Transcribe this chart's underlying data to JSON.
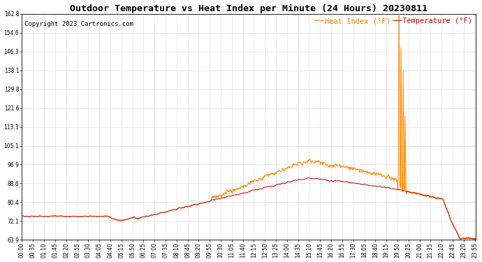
{
  "title": "Outdoor Temperature vs Heat Index per Minute (24 Hours) 20230811",
  "copyright": "Copyright 2023 Cartronics.com",
  "legend_heat": "Heat Index (°F)",
  "legend_temp": "Temperature (°F)",
  "temp_color": "#cc0000",
  "heat_color": "#ff8800",
  "background_color": "#ffffff",
  "grid_color": "#bbbbbb",
  "ylim_min": 63.9,
  "ylim_max": 162.8,
  "yticks": [
    63.9,
    72.1,
    80.4,
    88.6,
    96.9,
    105.1,
    113.3,
    121.6,
    129.8,
    138.1,
    146.3,
    154.6,
    162.8
  ],
  "title_fontsize": 9.5,
  "tick_fontsize": 5.5,
  "legend_fontsize": 7.5
}
